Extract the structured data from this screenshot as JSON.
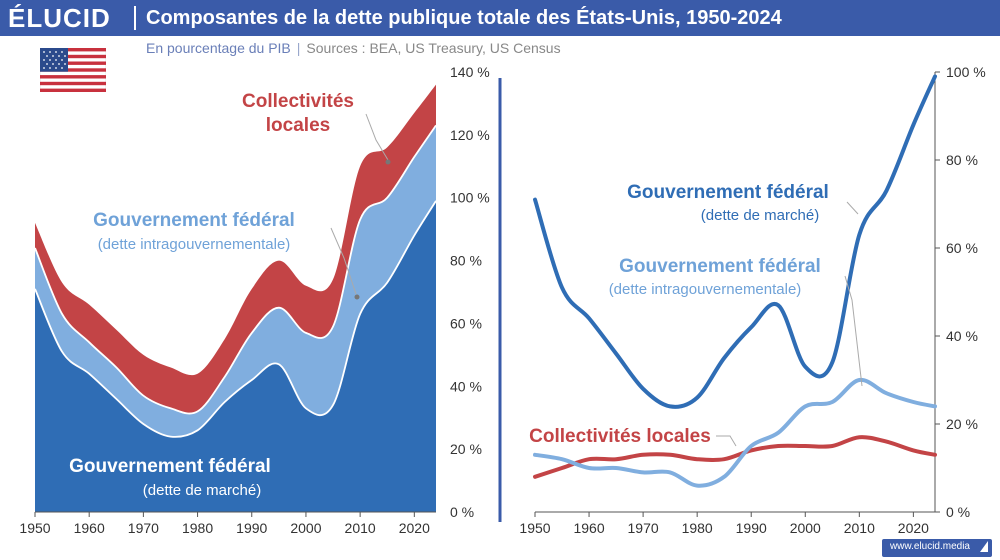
{
  "header": {
    "logo": "ÉLUCID",
    "title": "Composantes de la dette publique totale des États-Unis, 1950-2024"
  },
  "subtitle": {
    "unit": "En pourcentage du PIB",
    "separator": "|",
    "sources": "Sources : BEA, US Treasury, US Census"
  },
  "footer": {
    "site": "www.elucid.media"
  },
  "colors": {
    "header_bg": "#3a5ba9",
    "market_debt": "#2f6db5",
    "intragov_debt": "#80aedf",
    "local_debt": "#c34446",
    "divider": "#3a5ba9"
  },
  "icons": {
    "flag": "us-flag-icon"
  },
  "chart_data": [
    {
      "type": "area",
      "stacked": true,
      "x": [
        1950,
        1955,
        1960,
        1965,
        1970,
        1975,
        1980,
        1985,
        1990,
        1995,
        2000,
        2005,
        2010,
        2015,
        2020,
        2024
      ],
      "series": [
        {
          "name": "Gouvernement fédéral (dette de marché)",
          "values": [
            71,
            51,
            44,
            36,
            28,
            24,
            26,
            35,
            42,
            47,
            33,
            34,
            63,
            73,
            88,
            99
          ]
        },
        {
          "name": "Gouvernement fédéral (dette intragouvernementale)",
          "values": [
            13,
            12,
            10,
            10,
            9,
            9,
            6,
            8,
            15,
            18,
            24,
            25,
            30,
            27,
            25,
            24
          ]
        },
        {
          "name": "Collectivités locales",
          "values": [
            8,
            10,
            12,
            12,
            13,
            13,
            12,
            12,
            14,
            15,
            15,
            15,
            17,
            16,
            14,
            13
          ]
        }
      ],
      "xticks": [
        1950,
        1960,
        1970,
        1980,
        1990,
        2000,
        2010,
        2020
      ],
      "yticks": [
        0,
        20,
        40,
        60,
        80,
        100,
        120,
        140
      ],
      "ylim": [
        0,
        140
      ],
      "y_tick_suffix": " %",
      "labels": [
        {
          "line1": "Collectivités",
          "line2": "locales"
        },
        {
          "line1": "Gouvernement fédéral",
          "line2": "(dette intragouvernementale)"
        },
        {
          "line1": "Gouvernement fédéral",
          "line2": "(dette de marché)"
        }
      ]
    },
    {
      "type": "line",
      "x": [
        1950,
        1955,
        1960,
        1965,
        1970,
        1975,
        1980,
        1985,
        1990,
        1995,
        2000,
        2005,
        2010,
        2015,
        2020,
        2024
      ],
      "series": [
        {
          "name": "Gouvernement fédéral (dette de marché)",
          "values": [
            71,
            51,
            44,
            36,
            28,
            24,
            26,
            35,
            42,
            47,
            33,
            34,
            63,
            73,
            88,
            99
          ]
        },
        {
          "name": "Gouvernement fédéral (dette intragouvernementale)",
          "values": [
            13,
            12,
            10,
            10,
            9,
            9,
            6,
            8,
            15,
            18,
            24,
            25,
            30,
            27,
            25,
            24
          ]
        },
        {
          "name": "Collectivités locales",
          "values": [
            8,
            10,
            12,
            12,
            13,
            13,
            12,
            12,
            14,
            15,
            15,
            15,
            17,
            16,
            14,
            13
          ]
        }
      ],
      "xticks": [
        1950,
        1960,
        1970,
        1980,
        1990,
        2000,
        2010,
        2020
      ],
      "yticks": [
        0,
        20,
        40,
        60,
        80,
        100
      ],
      "ylim": [
        0,
        100
      ],
      "y_tick_suffix": " %",
      "labels": [
        {
          "line1": "Gouvernement fédéral",
          "line2": "(dette de marché)"
        },
        {
          "line1": "Gouvernement fédéral",
          "line2": "(dette intragouvernementale)"
        },
        {
          "line1": "Collectivités locales",
          "line2": ""
        }
      ]
    }
  ]
}
